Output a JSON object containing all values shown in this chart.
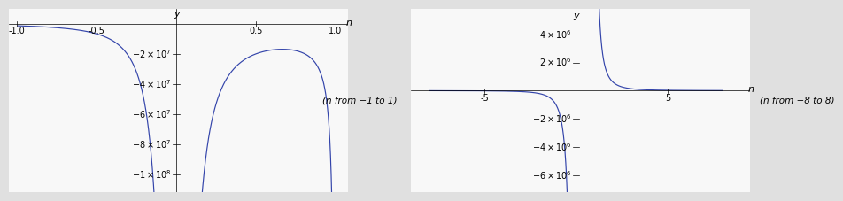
{
  "left": {
    "xlim": [
      -1.05,
      1.08
    ],
    "ylim": [
      -112000000.0,
      10000000.0
    ],
    "xtick_vals": [
      -1.0,
      -0.5,
      0.5,
      1.0
    ],
    "xtick_labels": [
      "-1.0",
      "-0.5",
      "0.5",
      "1.0"
    ],
    "ytick_vals": [
      -100000000.0,
      -80000000.0,
      -60000000.0,
      -40000000.0,
      -20000000.0
    ],
    "ytick_labels": [
      "-1×10^8",
      "-8×10^7",
      "-6×10^7",
      "-4×10^7",
      "-2×10^7"
    ],
    "x_range": [
      -1.0,
      1.0
    ],
    "singularities": [
      0.0,
      1.0
    ],
    "scale": 2500000.0
  },
  "right": {
    "xlim": [
      -9.0,
      9.5
    ],
    "ylim": [
      -7200000.0,
      5800000.0
    ],
    "xtick_vals": [
      -5,
      5
    ],
    "xtick_labels": [
      "-5",
      "5"
    ],
    "ytick_vals": [
      -6000000.0,
      -4000000.0,
      -2000000.0,
      2000000.0,
      4000000.0
    ],
    "ytick_labels": [
      "-6×10^6",
      "-4×10^6",
      "-2×10^6",
      "2×10^6",
      "4×10^6"
    ],
    "x_range": [
      -8.0,
      8.0
    ],
    "singularities": [
      0.0,
      1.0
    ],
    "scale": 2500000.0
  },
  "left_annotation": "(n from −1 to 1)",
  "right_annotation": "(n from −8 to 8)",
  "line_color": "#3344aa",
  "fig_bg": "#e0e0e0",
  "plot_bg": "#f8f8f8"
}
